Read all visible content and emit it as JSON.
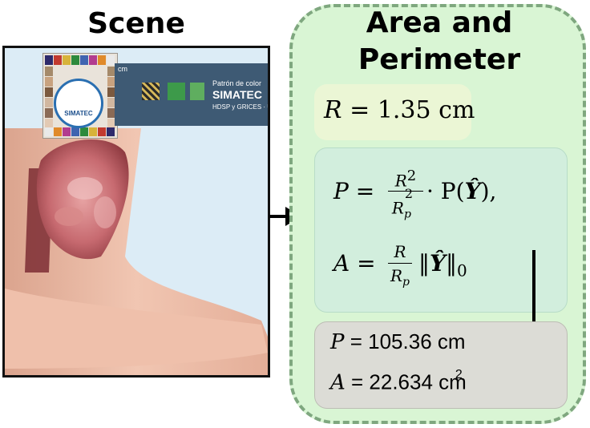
{
  "scene": {
    "title": "Scene",
    "ruler_line1": "Patrón de color",
    "ruler_line2": "SIMATEC",
    "ruler_line3": "HDSP y GRICES · UIS",
    "ruler_unit": "cm",
    "logo_text": "SIMATEC"
  },
  "area": {
    "title_line1": "Area and",
    "title_line2": "Perimeter",
    "radius": {
      "var": "R",
      "eq": " = ",
      "value": "1.35 cm"
    },
    "perimeter_formula": {
      "lhs": "P",
      "eq": " =",
      "num": "R",
      "num_exp": "2",
      "den": "R",
      "den_sub": "p",
      "den_exp": "2",
      "rhs": "· P(",
      "y": "Ŷ",
      "tail": "),"
    },
    "area_formula": {
      "lhs": "A",
      "eq": " =",
      "num": "R",
      "den": "R",
      "den_sub": "p",
      "norm_open": "‖",
      "y": "Ŷ",
      "norm_close": "‖",
      "norm_sub": "0"
    },
    "results": {
      "p_var": "P",
      "p_value": " = 105.36 cm",
      "a_var": "A",
      "a_value": " = 22.634 cm",
      "a_exp": "2"
    }
  }
}
